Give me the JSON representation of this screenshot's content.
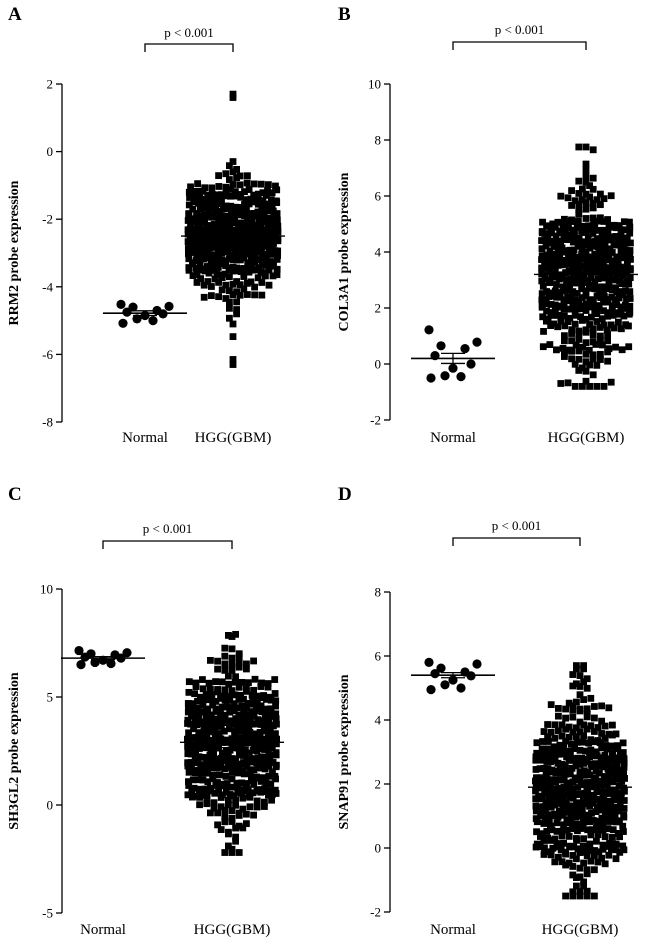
{
  "chart_data": [
    {
      "type": "scatter",
      "panel_label": "A",
      "ylabel": "RRM2 probe expression",
      "ylim": [
        -8,
        2
      ],
      "yticks": [
        -8,
        -6,
        -4,
        -2,
        0,
        2
      ],
      "categories": [
        "Normal",
        "HGG(GBM)"
      ],
      "significance": "p < 0.001",
      "normal": {
        "mean": -4.78,
        "sem": 0.07,
        "values": [
          -4.52,
          -4.58,
          -4.6,
          -4.7,
          -4.75,
          -4.8,
          -4.85,
          -4.95,
          -5.0,
          -5.08
        ]
      },
      "hgg": {
        "mean": -2.5,
        "sem": 0.05,
        "n": 480,
        "spread": 0.85,
        "min": -6.3,
        "max": 1.7
      }
    },
    {
      "type": "scatter",
      "panel_label": "B",
      "ylabel": "COL3A1 probe expression",
      "ylim": [
        -2,
        10
      ],
      "yticks": [
        -2,
        0,
        2,
        4,
        6,
        8,
        10
      ],
      "categories": [
        "Normal",
        "HGG(GBM)"
      ],
      "significance": "p < 0.001",
      "normal": {
        "mean": 0.2,
        "sem": 0.18,
        "values": [
          1.22,
          0.78,
          0.65,
          0.55,
          0.3,
          0.0,
          -0.15,
          -0.42,
          -0.45,
          -0.5
        ]
      },
      "hgg": {
        "mean": 3.2,
        "sem": 0.07,
        "n": 480,
        "spread": 1.6,
        "min": -0.8,
        "max": 7.75
      }
    },
    {
      "type": "scatter",
      "panel_label": "C",
      "ylabel": "SH3GL2  probe expression",
      "ylim": [
        -5,
        10
      ],
      "yticks": [
        -5,
        0,
        5,
        10
      ],
      "categories": [
        "Normal",
        "HGG(GBM)"
      ],
      "significance": "p < 0.001",
      "normal": {
        "mean": 6.8,
        "sem": 0.07,
        "values": [
          7.15,
          7.05,
          7.0,
          6.95,
          6.85,
          6.8,
          6.7,
          6.6,
          6.55,
          6.5
        ]
      },
      "hgg": {
        "mean": 2.9,
        "sem": 0.08,
        "n": 480,
        "spread": 1.95,
        "min": -2.2,
        "max": 7.9
      }
    },
    {
      "type": "scatter",
      "panel_label": "D",
      "ylabel": "SNAP91 probe expression",
      "ylim": [
        -2,
        8
      ],
      "yticks": [
        -2,
        0,
        2,
        4,
        6,
        8
      ],
      "categories": [
        "Normal",
        "HGG(GBM)"
      ],
      "significance": "p < 0.001",
      "normal": {
        "mean": 5.4,
        "sem": 0.08,
        "values": [
          5.8,
          5.75,
          5.62,
          5.5,
          5.45,
          5.38,
          5.25,
          5.1,
          5.0,
          4.95
        ]
      },
      "hgg": {
        "mean": 1.9,
        "sem": 0.07,
        "n": 480,
        "spread": 1.5,
        "min": -1.5,
        "max": 5.7
      }
    }
  ]
}
